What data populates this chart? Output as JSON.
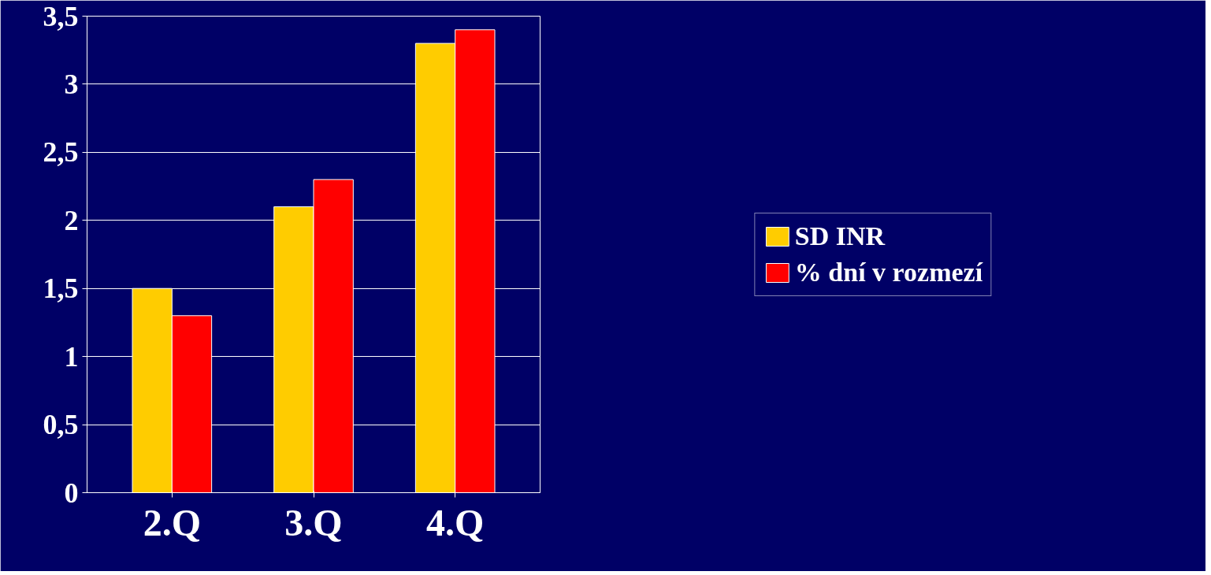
{
  "chart_data": {
    "type": "bar",
    "categories": [
      "2.Q",
      "3.Q",
      "4.Q"
    ],
    "series": [
      {
        "name": "SD INR",
        "color": "#ffcc00",
        "values": [
          1.5,
          2.1,
          3.3
        ]
      },
      {
        "name": "% dní v rozmezí",
        "color": "#ff0000",
        "values": [
          1.3,
          2.3,
          3.4
        ]
      }
    ],
    "ylim": [
      0,
      3.5
    ],
    "yticks": [
      0,
      {
        "value": 0.5,
        "label": "0,5"
      },
      1,
      {
        "value": 1.5,
        "label": "1,5"
      },
      2,
      {
        "value": 2.5,
        "label": "2,5"
      },
      3,
      {
        "value": 3.5,
        "label": "3,5"
      }
    ],
    "grid": "y",
    "legend": "right"
  }
}
